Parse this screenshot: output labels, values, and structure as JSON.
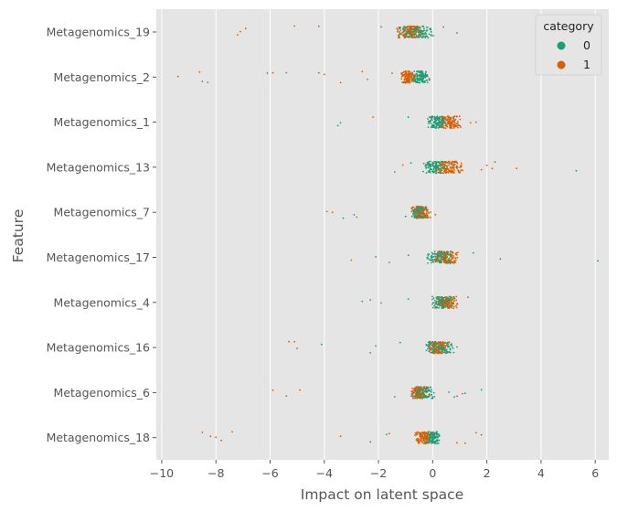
{
  "chart_data": {
    "type": "scatter",
    "style": "strip-plot",
    "xlabel": "Impact on latent space",
    "ylabel": "Feature",
    "xlim": [
      -10.2,
      6.5
    ],
    "xticks": [
      -10,
      -8,
      -6,
      -4,
      -2,
      0,
      2,
      4,
      6
    ],
    "grid": true,
    "legend": {
      "title": "category",
      "position": "top-right",
      "entries": [
        "0",
        "1"
      ]
    },
    "colors": {
      "0": "#1b9e77",
      "1": "#d95f02"
    },
    "features": [
      {
        "name": "Metagenomics_19",
        "cluster0": [
          -1.3,
          0.1
        ],
        "cluster1": [
          -1.4,
          -0.3
        ],
        "outliers": [
          [
            -7.1,
            "1"
          ],
          [
            -6.9,
            "1"
          ],
          [
            -7.2,
            "1"
          ],
          [
            -5.1,
            "1"
          ],
          [
            -4.2,
            "1"
          ],
          [
            -1.9,
            "0"
          ],
          [
            0.4,
            "0"
          ],
          [
            0.9,
            "0"
          ]
        ]
      },
      {
        "name": "Metagenomics_2",
        "cluster0": [
          -0.8,
          -0.1
        ],
        "cluster1": [
          -1.2,
          -0.6
        ],
        "outliers": [
          [
            -9.4,
            "1"
          ],
          [
            -8.5,
            "1"
          ],
          [
            -8.3,
            "1"
          ],
          [
            -8.6,
            "1"
          ],
          [
            -6.1,
            "0"
          ],
          [
            -5.9,
            "1"
          ],
          [
            -5.4,
            "1"
          ],
          [
            -4.2,
            "0"
          ],
          [
            -4.0,
            "1"
          ],
          [
            -3.4,
            "1"
          ],
          [
            -2.4,
            "1"
          ],
          [
            -2.6,
            "1"
          ],
          [
            -1.5,
            "1"
          ]
        ]
      },
      {
        "name": "Metagenomics_1",
        "cluster0": [
          -0.2,
          0.5
        ],
        "cluster1": [
          0.2,
          1.1
        ],
        "outliers": [
          [
            -3.5,
            "0"
          ],
          [
            -3.4,
            "0"
          ],
          [
            -2.2,
            "1"
          ],
          [
            -0.9,
            "0"
          ],
          [
            1.4,
            "1"
          ],
          [
            1.6,
            "1"
          ]
        ]
      },
      {
        "name": "Metagenomics_13",
        "cluster0": [
          -0.5,
          0.6
        ],
        "cluster1": [
          0.0,
          1.2
        ],
        "outliers": [
          [
            -1.4,
            "1"
          ],
          [
            -1.1,
            "1"
          ],
          [
            -0.8,
            "0"
          ],
          [
            1.8,
            "1"
          ],
          [
            2.0,
            "1"
          ],
          [
            2.3,
            "1"
          ],
          [
            2.2,
            "1"
          ],
          [
            3.1,
            "1"
          ],
          [
            5.3,
            "0"
          ]
        ]
      },
      {
        "name": "Metagenomics_7",
        "cluster0": [
          -0.8,
          -0.2
        ],
        "cluster1": [
          -0.8,
          0.0
        ],
        "outliers": [
          [
            -3.9,
            "1"
          ],
          [
            -3.7,
            "1"
          ],
          [
            -3.3,
            "0"
          ],
          [
            -2.9,
            "0"
          ],
          [
            -2.8,
            "1"
          ],
          [
            -1.0,
            "0"
          ],
          [
            0.1,
            "1"
          ]
        ]
      },
      {
        "name": "Metagenomics_17",
        "cluster0": [
          -0.3,
          0.9
        ],
        "cluster1": [
          0.0,
          1.0
        ],
        "outliers": [
          [
            -3.0,
            "1"
          ],
          [
            -2.1,
            "0"
          ],
          [
            -1.6,
            "1"
          ],
          [
            -0.9,
            "0"
          ],
          [
            1.5,
            "0"
          ],
          [
            2.5,
            "0"
          ],
          [
            6.1,
            "0"
          ]
        ]
      },
      {
        "name": "Metagenomics_4",
        "cluster0": [
          -0.1,
          0.8
        ],
        "cluster1": [
          0.1,
          1.0
        ],
        "outliers": [
          [
            -2.6,
            "0"
          ],
          [
            -2.3,
            "0"
          ],
          [
            -1.9,
            "1"
          ],
          [
            -0.9,
            "0"
          ],
          [
            1.3,
            "1"
          ]
        ]
      },
      {
        "name": "Metagenomics_16",
        "cluster0": [
          -0.3,
          0.8
        ],
        "cluster1": [
          -0.2,
          0.6
        ],
        "outliers": [
          [
            -5.3,
            "1"
          ],
          [
            -5.1,
            "1"
          ],
          [
            -5.0,
            "1"
          ],
          [
            -4.1,
            "0"
          ],
          [
            -2.3,
            "0"
          ],
          [
            -2.1,
            "0"
          ],
          [
            -1.2,
            "0"
          ],
          [
            0.9,
            "1"
          ]
        ]
      },
      {
        "name": "Metagenomics_6",
        "cluster0": [
          -0.8,
          0.1
        ],
        "cluster1": [
          -0.8,
          -0.2
        ],
        "outliers": [
          [
            -5.9,
            "1"
          ],
          [
            -5.4,
            "1"
          ],
          [
            -4.9,
            "1"
          ],
          [
            -1.4,
            "0"
          ],
          [
            0.6,
            "0"
          ],
          [
            0.9,
            "1"
          ],
          [
            1.1,
            "1"
          ],
          [
            0.8,
            "0"
          ],
          [
            1.8,
            "0"
          ],
          [
            1.2,
            "0"
          ]
        ]
      },
      {
        "name": "Metagenomics_18",
        "cluster0": [
          -0.3,
          0.3
        ],
        "cluster1": [
          -0.7,
          0.0
        ],
        "outliers": [
          [
            -8.5,
            "1"
          ],
          [
            -8.2,
            "1"
          ],
          [
            -8.0,
            "1"
          ],
          [
            -7.8,
            "1"
          ],
          [
            -7.4,
            "1"
          ],
          [
            -3.4,
            "1"
          ],
          [
            -2.3,
            "0"
          ],
          [
            -1.7,
            "0"
          ],
          [
            -1.6,
            "1"
          ],
          [
            0.9,
            "1"
          ],
          [
            1.2,
            "1"
          ],
          [
            1.6,
            "1"
          ],
          [
            1.8,
            "1"
          ]
        ]
      }
    ]
  }
}
